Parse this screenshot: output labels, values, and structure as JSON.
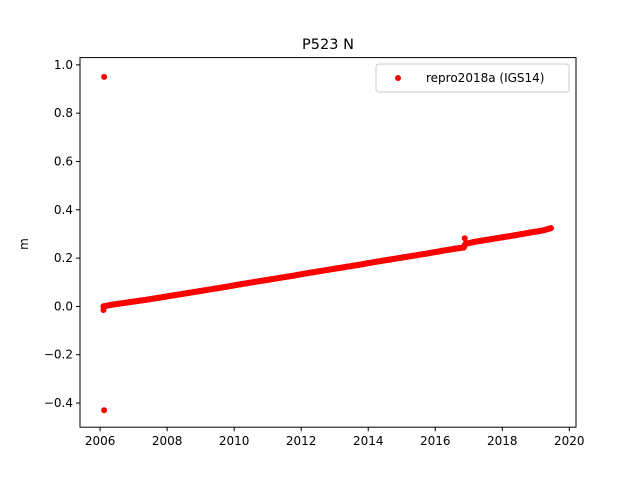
{
  "chart_data": {
    "type": "scatter",
    "title": "P523 N",
    "xlabel": "",
    "ylabel": "m",
    "xlim": [
      2005.4,
      2020.2
    ],
    "ylim": [
      -0.5,
      1.03
    ],
    "xticks": [
      2006,
      2008,
      2010,
      2012,
      2014,
      2016,
      2018,
      2020
    ],
    "xtick_labels": [
      "2006",
      "2008",
      "2010",
      "2012",
      "2014",
      "2016",
      "2018",
      "2020"
    ],
    "yticks": [
      -0.4,
      -0.2,
      0.0,
      0.2,
      0.4,
      0.6,
      0.8,
      1.0
    ],
    "ytick_labels": [
      "−0.4",
      "−0.2",
      "0.0",
      "0.2",
      "0.4",
      "0.6",
      "0.8",
      "1.0"
    ],
    "grid": false,
    "legend_position": "top-right",
    "series": [
      {
        "name": "repro2018a (IGS14)",
        "color": "#ff0000",
        "marker": "circle",
        "x": [
          2006.1,
          2006.3,
          2006.6,
          2007.0,
          2007.4,
          2007.8,
          2008.2,
          2008.6,
          2009.0,
          2009.4,
          2009.8,
          2010.2,
          2010.6,
          2011.0,
          2011.4,
          2011.8,
          2012.2,
          2012.6,
          2013.0,
          2013.4,
          2013.8,
          2014.2,
          2014.6,
          2015.0,
          2015.4,
          2015.8,
          2016.2,
          2016.6,
          2016.85,
          2016.9,
          2017.2,
          2017.6,
          2018.0,
          2018.4,
          2018.8,
          2019.2,
          2019.45
        ],
        "y": [
          0.0,
          0.006,
          0.012,
          0.02,
          0.028,
          0.037,
          0.046,
          0.055,
          0.064,
          0.073,
          0.082,
          0.092,
          0.101,
          0.11,
          0.119,
          0.128,
          0.138,
          0.147,
          0.156,
          0.165,
          0.174,
          0.184,
          0.193,
          0.202,
          0.211,
          0.22,
          0.23,
          0.239,
          0.244,
          0.259,
          0.268,
          0.277,
          0.286,
          0.295,
          0.305,
          0.314,
          0.324
        ],
        "outliers": [
          {
            "x": 2006.12,
            "y": 0.95
          },
          {
            "x": 2006.12,
            "y": -0.43
          },
          {
            "x": 2006.1,
            "y": -0.015
          },
          {
            "x": 2016.88,
            "y": 0.282
          }
        ]
      }
    ]
  }
}
